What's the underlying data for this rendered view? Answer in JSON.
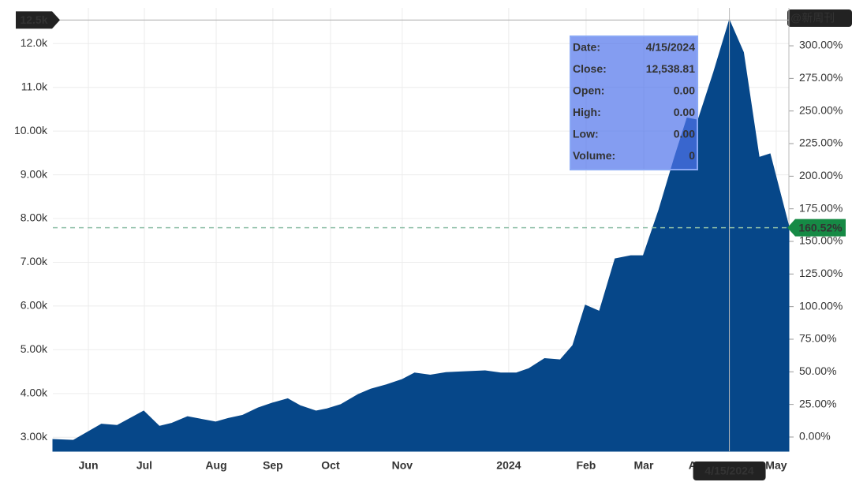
{
  "chart_data": {
    "type": "area",
    "color": "#064789",
    "x": [
      0,
      1.3,
      3.1,
      4.1,
      5.8,
      6.8,
      7.6,
      8.6,
      10.4,
      11.2,
      12.1,
      13.1,
      14.0,
      15.0,
      15.8,
      16.8,
      17.5,
      18.4,
      19.5,
      20.3,
      21.3,
      22.3,
      23.1,
      24.1,
      25.1,
      26.3,
      27.6,
      28.6,
      29.6,
      30.4,
      31.4,
      32.4,
      33.2,
      34.0,
      34.9,
      35.9,
      36.9,
      37.7,
      38.7,
      39.7,
      40.5,
      41.2,
      42.2,
      43.2,
      44.1,
      45.1,
      45.8,
      47.0
    ],
    "values": [
      2950,
      2930,
      3300,
      3270,
      3600,
      3250,
      3320,
      3470,
      3350,
      3430,
      3500,
      3670,
      3780,
      3880,
      3720,
      3600,
      3650,
      3750,
      3980,
      4100,
      4200,
      4320,
      4470,
      4420,
      4480,
      4500,
      4520,
      4470,
      4470,
      4570,
      4800,
      4770,
      5100,
      6020,
      5880,
      7080,
      7150,
      7150,
      8200,
      9400,
      10300,
      10250,
      11350,
      12538.81,
      11800,
      9400,
      9480,
      7815
    ],
    "xlim": [
      0,
      47
    ],
    "xticks": [
      {
        "value": 2.27,
        "label": "Jun"
      },
      {
        "value": 5.84,
        "label": "Jul"
      },
      {
        "value": 10.43,
        "label": "Aug"
      },
      {
        "value": 14.05,
        "label": "Sep"
      },
      {
        "value": 17.73,
        "label": "Oct"
      },
      {
        "value": 22.31,
        "label": "Nov"
      },
      {
        "value": 29.11,
        "label": "2024"
      },
      {
        "value": 34.05,
        "label": "Feb"
      },
      {
        "value": 37.73,
        "label": "Mar"
      },
      {
        "value": 41.2,
        "label": "Apr"
      },
      {
        "value": 46.19,
        "label": "May"
      }
    ],
    "ylim": [
      2680,
      12600
    ],
    "yticks": [
      {
        "value": 3000,
        "label": "3.00k"
      },
      {
        "value": 4000,
        "label": "4.00k"
      },
      {
        "value": 5000,
        "label": "5.00k"
      },
      {
        "value": 6000,
        "label": "6.00k"
      },
      {
        "value": 7000,
        "label": "7.00k"
      },
      {
        "value": 8000,
        "label": "8.00k"
      },
      {
        "value": 9000,
        "label": "9.00k"
      },
      {
        "value": 10000,
        "label": "10.00k"
      },
      {
        "value": 11000,
        "label": "11.0k"
      },
      {
        "value": 12000,
        "label": "12.0k"
      }
    ],
    "y2lim": [
      -10.9,
      321.8
    ],
    "y2ticks": [
      {
        "value": 0,
        "label": "0.00%"
      },
      {
        "value": 25,
        "label": "25.00%"
      },
      {
        "value": 50,
        "label": "50.00%"
      },
      {
        "value": 75,
        "label": "75.00%"
      },
      {
        "value": 100,
        "label": "100.00%"
      },
      {
        "value": 125,
        "label": "125.00%"
      },
      {
        "value": 150,
        "label": "150.00%"
      },
      {
        "value": 175,
        "label": "175.00%"
      },
      {
        "value": 200,
        "label": "200.00%"
      },
      {
        "value": 225,
        "label": "225.00%"
      },
      {
        "value": 250,
        "label": "250.00%"
      },
      {
        "value": 275,
        "label": "275.00%"
      },
      {
        "value": 300,
        "label": "300.00%"
      }
    ],
    "grid": true,
    "last_change": {
      "value": 160.52,
      "label": "160.52%"
    },
    "crosshair": {
      "x": 43.2,
      "y": 12538.81,
      "y_label": "12.5k",
      "x_label": "4/15/2024"
    },
    "tooltip": [
      [
        "Date:",
        "4/15/2024"
      ],
      [
        "Close:",
        "12,538.81"
      ],
      [
        "Open:",
        "0.00"
      ],
      [
        "High:",
        "0.00"
      ],
      [
        "Low:",
        "0.00"
      ],
      [
        "Volume:",
        "0"
      ]
    ],
    "watermark": "@新周刊"
  }
}
